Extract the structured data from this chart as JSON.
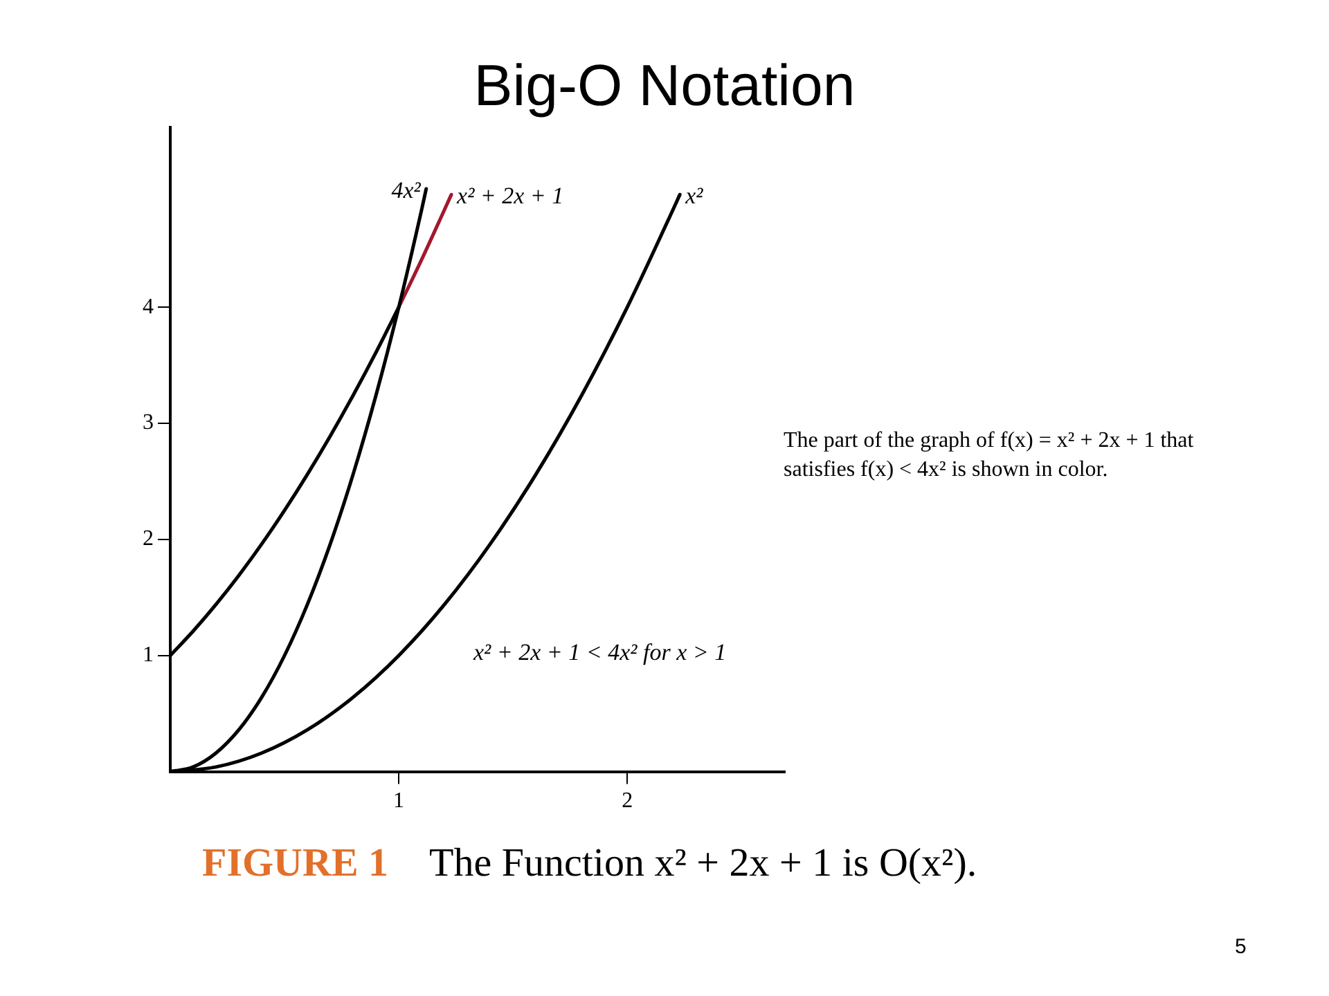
{
  "chart_data": {
    "type": "line",
    "title": "Big-O Notation",
    "series": [
      {
        "name": "4x²",
        "color": "#000000",
        "x": [
          0,
          0.1,
          0.2,
          0.3,
          0.4,
          0.5,
          0.6,
          0.7,
          0.8,
          0.9,
          1,
          1.1,
          1.12
        ],
        "values": [
          0,
          0.04,
          0.16,
          0.36,
          0.64,
          1,
          1.44,
          1.96,
          2.56,
          3.24,
          4,
          4.84,
          5.02
        ]
      },
      {
        "color": "#000000",
        "x": [
          0,
          0.1,
          0.2,
          0.3,
          0.4,
          0.5,
          0.6,
          0.7,
          0.8,
          0.9,
          1
        ],
        "values": [
          1,
          1.21,
          1.44,
          1.69,
          1.96,
          2.25,
          2.56,
          2.89,
          3.24,
          3.61,
          4
        ]
      },
      {
        "name": "x² + 2x + 1",
        "color": "#a3182e",
        "x": [
          1,
          1.1,
          1.2,
          1.23
        ],
        "values": [
          4,
          4.41,
          4.84,
          4.97
        ]
      },
      {
        "name": "x²",
        "color": "#000000",
        "x": [
          0,
          0.2,
          0.4,
          0.6,
          0.8,
          1,
          1.2,
          1.4,
          1.6,
          1.8,
          2,
          2.2,
          2.23
        ],
        "values": [
          0,
          0.04,
          0.16,
          0.36,
          0.64,
          1,
          1.44,
          1.96,
          2.56,
          3.24,
          4,
          4.84,
          4.97
        ]
      }
    ],
    "xlim": [
      0,
      2.69
    ],
    "ylim": [
      0,
      5.55
    ],
    "xticks": [
      1,
      2
    ],
    "yticks": [
      1,
      2,
      3,
      4
    ],
    "grid": false,
    "legend": false,
    "marker": "none",
    "line_style": "solid",
    "annotations": [
      "The part of the graph of f(x) = x² + 2x + 1 that satisfies f(x) < 4x² is shown in color.",
      "x² + 2x + 1 < 4x² for x > 1",
      "FIGURE 1",
      "The Function x² + 2x + 1 is O(x²).",
      "5"
    ]
  }
}
